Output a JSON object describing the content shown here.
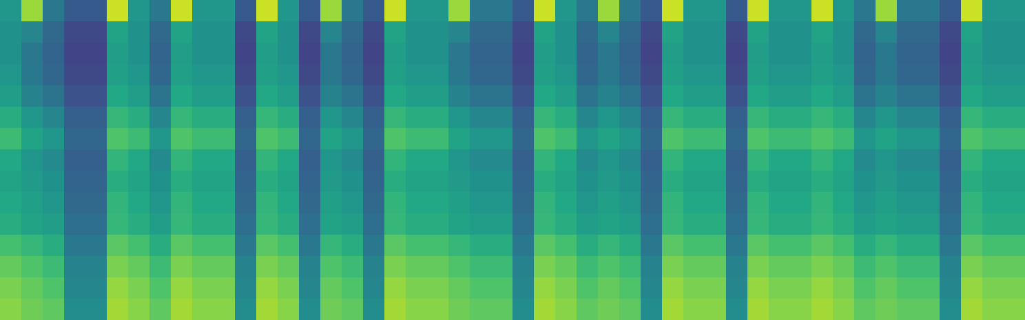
{
  "chart_data": {
    "type": "heatmap",
    "color": "viridis",
    "tick_labels": false,
    "zlim": [
      0,
      1
    ],
    "cells": [
      [
        0.52,
        0.85,
        0.4,
        0.28,
        0.28,
        0.92,
        0.52,
        0.4,
        0.92,
        0.52,
        0.52,
        0.28,
        0.92,
        0.52,
        0.28,
        0.85,
        0.4,
        0.28,
        0.92,
        0.52,
        0.52,
        0.85,
        0.4,
        0.4,
        0.28,
        0.92,
        0.52,
        0.4,
        0.85,
        0.4,
        0.28,
        0.92,
        0.52,
        0.52,
        0.28,
        0.92,
        0.52,
        0.52,
        0.92,
        0.52,
        0.4,
        0.85,
        0.4,
        0.4,
        0.28,
        0.92,
        0.52,
        0.52
      ],
      [
        0.5,
        0.45,
        0.34,
        0.22,
        0.22,
        0.58,
        0.5,
        0.34,
        0.58,
        0.5,
        0.5,
        0.22,
        0.58,
        0.5,
        0.22,
        0.45,
        0.34,
        0.22,
        0.58,
        0.5,
        0.5,
        0.45,
        0.34,
        0.34,
        0.22,
        0.58,
        0.5,
        0.34,
        0.45,
        0.34,
        0.22,
        0.58,
        0.5,
        0.5,
        0.22,
        0.58,
        0.5,
        0.5,
        0.58,
        0.5,
        0.34,
        0.45,
        0.34,
        0.34,
        0.22,
        0.58,
        0.5,
        0.5
      ],
      [
        0.5,
        0.4,
        0.32,
        0.2,
        0.2,
        0.55,
        0.5,
        0.32,
        0.55,
        0.5,
        0.5,
        0.2,
        0.55,
        0.5,
        0.2,
        0.4,
        0.32,
        0.2,
        0.55,
        0.5,
        0.5,
        0.4,
        0.32,
        0.32,
        0.2,
        0.55,
        0.5,
        0.32,
        0.4,
        0.32,
        0.2,
        0.55,
        0.5,
        0.5,
        0.2,
        0.55,
        0.5,
        0.5,
        0.55,
        0.5,
        0.32,
        0.4,
        0.32,
        0.32,
        0.2,
        0.55,
        0.5,
        0.5
      ],
      [
        0.52,
        0.4,
        0.33,
        0.22,
        0.22,
        0.56,
        0.52,
        0.33,
        0.56,
        0.52,
        0.52,
        0.22,
        0.56,
        0.52,
        0.22,
        0.4,
        0.33,
        0.22,
        0.56,
        0.52,
        0.52,
        0.4,
        0.33,
        0.33,
        0.22,
        0.56,
        0.52,
        0.33,
        0.4,
        0.33,
        0.22,
        0.56,
        0.52,
        0.52,
        0.22,
        0.56,
        0.52,
        0.52,
        0.56,
        0.52,
        0.33,
        0.4,
        0.33,
        0.33,
        0.22,
        0.56,
        0.52,
        0.52
      ],
      [
        0.55,
        0.44,
        0.38,
        0.25,
        0.25,
        0.6,
        0.55,
        0.38,
        0.6,
        0.55,
        0.55,
        0.25,
        0.6,
        0.55,
        0.25,
        0.44,
        0.38,
        0.25,
        0.6,
        0.55,
        0.55,
        0.44,
        0.38,
        0.38,
        0.25,
        0.6,
        0.55,
        0.38,
        0.44,
        0.38,
        0.25,
        0.6,
        0.55,
        0.55,
        0.25,
        0.6,
        0.55,
        0.55,
        0.6,
        0.55,
        0.38,
        0.44,
        0.38,
        0.38,
        0.25,
        0.6,
        0.55,
        0.55
      ],
      [
        0.62,
        0.52,
        0.46,
        0.3,
        0.3,
        0.66,
        0.62,
        0.46,
        0.66,
        0.62,
        0.62,
        0.3,
        0.66,
        0.62,
        0.3,
        0.52,
        0.46,
        0.3,
        0.66,
        0.62,
        0.62,
        0.52,
        0.46,
        0.46,
        0.3,
        0.66,
        0.62,
        0.46,
        0.52,
        0.46,
        0.3,
        0.66,
        0.62,
        0.62,
        0.3,
        0.66,
        0.62,
        0.62,
        0.66,
        0.62,
        0.46,
        0.52,
        0.46,
        0.46,
        0.3,
        0.66,
        0.62,
        0.62
      ],
      [
        0.68,
        0.58,
        0.52,
        0.33,
        0.33,
        0.72,
        0.68,
        0.52,
        0.72,
        0.68,
        0.68,
        0.33,
        0.72,
        0.68,
        0.33,
        0.58,
        0.52,
        0.33,
        0.72,
        0.68,
        0.68,
        0.58,
        0.52,
        0.52,
        0.33,
        0.72,
        0.68,
        0.52,
        0.58,
        0.52,
        0.33,
        0.72,
        0.68,
        0.68,
        0.33,
        0.72,
        0.68,
        0.68,
        0.72,
        0.68,
        0.52,
        0.58,
        0.52,
        0.52,
        0.33,
        0.72,
        0.68,
        0.68
      ],
      [
        0.6,
        0.52,
        0.47,
        0.3,
        0.3,
        0.65,
        0.6,
        0.47,
        0.65,
        0.6,
        0.6,
        0.3,
        0.65,
        0.6,
        0.3,
        0.52,
        0.47,
        0.3,
        0.65,
        0.6,
        0.6,
        0.52,
        0.47,
        0.47,
        0.3,
        0.65,
        0.6,
        0.47,
        0.52,
        0.47,
        0.3,
        0.65,
        0.6,
        0.6,
        0.3,
        0.65,
        0.6,
        0.6,
        0.65,
        0.6,
        0.47,
        0.52,
        0.47,
        0.47,
        0.3,
        0.65,
        0.6,
        0.6
      ],
      [
        0.58,
        0.54,
        0.5,
        0.32,
        0.32,
        0.62,
        0.58,
        0.5,
        0.62,
        0.58,
        0.58,
        0.32,
        0.62,
        0.58,
        0.32,
        0.54,
        0.5,
        0.32,
        0.62,
        0.58,
        0.58,
        0.54,
        0.5,
        0.5,
        0.32,
        0.62,
        0.58,
        0.5,
        0.54,
        0.5,
        0.32,
        0.62,
        0.58,
        0.58,
        0.32,
        0.62,
        0.58,
        0.58,
        0.62,
        0.58,
        0.5,
        0.54,
        0.5,
        0.5,
        0.32,
        0.62,
        0.58,
        0.58
      ],
      [
        0.6,
        0.56,
        0.52,
        0.34,
        0.34,
        0.65,
        0.6,
        0.52,
        0.65,
        0.6,
        0.6,
        0.34,
        0.65,
        0.6,
        0.34,
        0.56,
        0.52,
        0.34,
        0.65,
        0.6,
        0.6,
        0.56,
        0.52,
        0.52,
        0.34,
        0.65,
        0.6,
        0.52,
        0.56,
        0.52,
        0.34,
        0.65,
        0.6,
        0.6,
        0.34,
        0.65,
        0.6,
        0.6,
        0.65,
        0.6,
        0.52,
        0.56,
        0.52,
        0.52,
        0.34,
        0.65,
        0.6,
        0.6
      ],
      [
        0.62,
        0.58,
        0.55,
        0.36,
        0.36,
        0.66,
        0.62,
        0.55,
        0.66,
        0.62,
        0.62,
        0.36,
        0.66,
        0.62,
        0.36,
        0.58,
        0.55,
        0.36,
        0.66,
        0.62,
        0.62,
        0.58,
        0.55,
        0.55,
        0.36,
        0.66,
        0.62,
        0.55,
        0.58,
        0.55,
        0.36,
        0.66,
        0.62,
        0.62,
        0.36,
        0.66,
        0.62,
        0.62,
        0.66,
        0.62,
        0.55,
        0.58,
        0.55,
        0.55,
        0.36,
        0.66,
        0.62,
        0.62
      ],
      [
        0.7,
        0.66,
        0.62,
        0.4,
        0.4,
        0.74,
        0.7,
        0.62,
        0.74,
        0.7,
        0.7,
        0.4,
        0.74,
        0.7,
        0.4,
        0.66,
        0.62,
        0.4,
        0.74,
        0.7,
        0.7,
        0.66,
        0.62,
        0.62,
        0.4,
        0.74,
        0.7,
        0.62,
        0.66,
        0.62,
        0.4,
        0.74,
        0.7,
        0.7,
        0.4,
        0.74,
        0.7,
        0.7,
        0.74,
        0.7,
        0.62,
        0.66,
        0.62,
        0.62,
        0.4,
        0.74,
        0.7,
        0.7
      ],
      [
        0.76,
        0.72,
        0.68,
        0.44,
        0.44,
        0.8,
        0.76,
        0.68,
        0.8,
        0.76,
        0.76,
        0.44,
        0.8,
        0.76,
        0.44,
        0.72,
        0.68,
        0.44,
        0.8,
        0.76,
        0.76,
        0.72,
        0.68,
        0.68,
        0.44,
        0.8,
        0.76,
        0.68,
        0.72,
        0.68,
        0.44,
        0.8,
        0.76,
        0.76,
        0.44,
        0.8,
        0.76,
        0.76,
        0.8,
        0.76,
        0.68,
        0.72,
        0.68,
        0.68,
        0.44,
        0.8,
        0.76,
        0.76
      ],
      [
        0.8,
        0.76,
        0.72,
        0.46,
        0.46,
        0.84,
        0.8,
        0.72,
        0.84,
        0.8,
        0.8,
        0.46,
        0.84,
        0.8,
        0.46,
        0.76,
        0.72,
        0.46,
        0.84,
        0.8,
        0.8,
        0.76,
        0.72,
        0.72,
        0.46,
        0.84,
        0.8,
        0.72,
        0.76,
        0.72,
        0.46,
        0.84,
        0.8,
        0.8,
        0.46,
        0.84,
        0.8,
        0.8,
        0.84,
        0.8,
        0.72,
        0.76,
        0.72,
        0.72,
        0.46,
        0.84,
        0.8,
        0.8
      ],
      [
        0.82,
        0.78,
        0.75,
        0.48,
        0.48,
        0.86,
        0.82,
        0.75,
        0.86,
        0.82,
        0.82,
        0.48,
        0.86,
        0.82,
        0.48,
        0.78,
        0.75,
        0.48,
        0.86,
        0.82,
        0.82,
        0.78,
        0.75,
        0.75,
        0.48,
        0.86,
        0.82,
        0.75,
        0.78,
        0.75,
        0.48,
        0.86,
        0.82,
        0.82,
        0.48,
        0.86,
        0.82,
        0.82,
        0.86,
        0.82,
        0.75,
        0.78,
        0.75,
        0.75,
        0.48,
        0.86,
        0.82,
        0.82
      ]
    ]
  }
}
